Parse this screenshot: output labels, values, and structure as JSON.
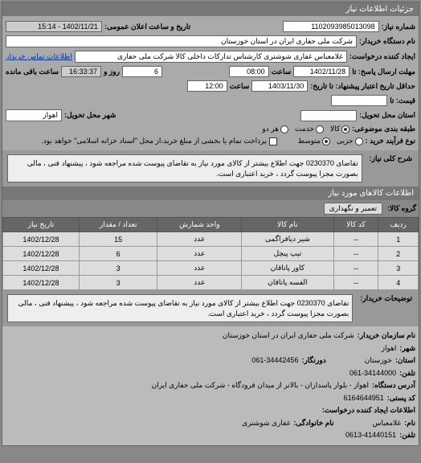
{
  "header": {
    "title": "جزئیات اطلاعات نیاز"
  },
  "form": {
    "request_no_label": "شماره نیاز:",
    "request_no": "1102093985013098",
    "announce_label": "تاریخ و ساعت اعلان عمومی:",
    "announce_value": "1402/11/21 - 15:14",
    "buyer_org_label": "نام دستگاه خریدار:",
    "buyer_org": "شرکت ملی حفاری ایران در استان خوزستان",
    "creator_label": "ایجاد کننده درخواست:",
    "creator": "غلامعباس غفاری شوشتری کارشناس تدارکات داخلی کالا شرکت ملی حفاری",
    "contact_link": "اطلاعات تماس خریدار",
    "deadline_send_label": "مهلت ارسال پاسخ: تا",
    "deadline_send_date": "1402/11/28",
    "time_label": "ساعت",
    "deadline_send_time": "08:00",
    "remain_label_days": "روز و",
    "remain_days": "6",
    "remain_time": "16:33:37",
    "remain_label_left": "ساعت باقی مانده",
    "validity_label": "حداقل تاریخ اعتبار پیشنهاد: تا تاریخ:",
    "validity_date": "1403/11/30",
    "validity_time": "12:00",
    "price_label": "قیمت: تا",
    "delivery_addr_label": "استان محل تحویل:",
    "delivery_city_label": "شهر محل تحویل:",
    "delivery_city": "اهواز",
    "category_label": "طبقه بندی موضوعی:",
    "radio_goods": "کالا",
    "radio_service": "خدمت",
    "radio_both": "هر دو",
    "process_label": "نوع فرآیند خرید :",
    "radio_small": "جزیی",
    "radio_medium": "متوسط",
    "payment_note": "پرداخت تمام یا بخشی از مبلغ خرید،از محل \"اسناد خزانه اسلامی\" خواهد بود."
  },
  "description": {
    "label": "شرح کلی نیاز:",
    "text": "تقاضای 0230370 جهت اطلاع بیشتر از کالای مورد نیاز به تقاضای پیوست شده مراجعه شود ، پیشنهاد فنی ، مالی بصورت مجزا پیوست گردد ، خرید اعتباری است."
  },
  "items_header": "اطلاعات کالاهای مورد نیاز",
  "category": {
    "label": "گروه کالا:",
    "value": "تعمیر و نگهداری"
  },
  "table": {
    "headers": [
      "ردیف",
      "کد کالا",
      "نام کالا",
      "واحد شمارش",
      "تعداد / مقدار",
      "تاریخ نیاز"
    ],
    "rows": [
      [
        "1",
        "--",
        "شیر دیافراگمی",
        "عدد",
        "15",
        "1402/12/28"
      ],
      [
        "2",
        "--",
        "تیپ پیچل",
        "عدد",
        "6",
        "1402/12/28"
      ],
      [
        "3",
        "--",
        "کاور پاتاقان",
        "عدد",
        "3",
        "1402/12/28"
      ],
      [
        "4",
        "--",
        "الفسه پاتاقان",
        "عدد",
        "3",
        "1402/12/28"
      ]
    ]
  },
  "buyer_desc": {
    "label": "توضیحات خریدار:",
    "text": "تقاضای 0230370 جهت اطلاع بیشتر از کالای مورد نیاز به تقاضای پیوست شده مراجعه شود ، پیشنهاد فنی ، مالی بصورت مجزا پیوست گردد ، خرید اعتباری است."
  },
  "footer": {
    "org_label": "نام سازمان خریدار:",
    "org": "شرکت ملی حفاری ایران در استان خوزستان",
    "city_label": "شهر:",
    "city": "اهواز",
    "province_label": "استان:",
    "province": "خوزستان",
    "fax_label": "دورنگار:",
    "fax": "061-34442456",
    "phone_label": "تلفن:",
    "phone": "061-34144000",
    "address_label": "آدرس دستگاه:",
    "address": "اهواز - بلوار پاسداران - بالاتر از میدان فرودگاه - شرکت ملی حفاری ایران",
    "postal_label": "کد پستی:",
    "postal": "6164644951",
    "creator_info_label": "اطلاعات ایجاد کننده درخواست:",
    "creator_name_label": "نام:",
    "creator_name": "غلامعباس",
    "creator_lname_label": "نام خانوادگی:",
    "creator_lname": "غفاری شوشتری",
    "creator_phone_label": "تلفن:",
    "creator_phone": "0613-41440151"
  }
}
